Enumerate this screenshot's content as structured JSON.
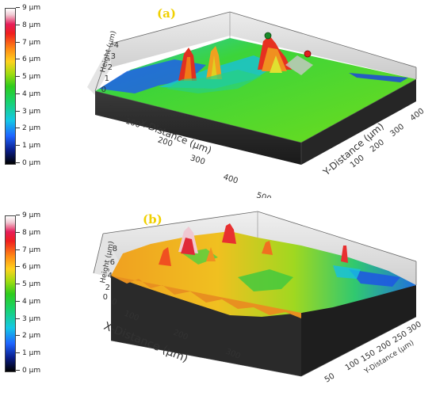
{
  "colorbar": {
    "labels": [
      "9 µm",
      "8 µm",
      "7 µm",
      "6 µm",
      "5 µm",
      "4 µm",
      "3 µm",
      "2 µm",
      "1 µm",
      "0 µm"
    ]
  },
  "panel_a": {
    "tag": "(a)",
    "height_title": "Height (µm)",
    "height_ticks": [
      "4",
      "3",
      "2",
      "1",
      "0"
    ],
    "x_title": "X-Distance (µm)",
    "x_ticks": [
      "0",
      "100",
      "200",
      "300",
      "400",
      "500"
    ],
    "y_title": "Y-Distance (µm)",
    "y_ticks": [
      "100",
      "200",
      "300",
      "400"
    ]
  },
  "panel_b": {
    "tag": "(b)",
    "height_title": "Height (µm)",
    "height_ticks": [
      "8",
      "6",
      "4",
      "2",
      "0"
    ],
    "x_title": "X-Distance (µm)",
    "x_ticks": [
      "0",
      "100",
      "200",
      "300"
    ],
    "y_title": "Y-Distance (µm)",
    "y_ticks": [
      "50",
      "100",
      "150",
      "200",
      "250",
      "300"
    ]
  },
  "colors": {
    "base": "#2a2a2a",
    "plane_green": "#4fd12a",
    "accent_yellow": "#f0d000"
  }
}
